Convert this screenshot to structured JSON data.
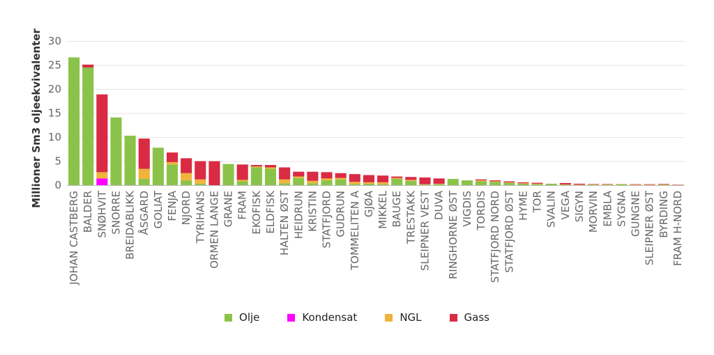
{
  "chart_data": {
    "type": "bar",
    "stacked": true,
    "ylabel": "Millioner Sm3 oljeekvivalenter",
    "ylim": [
      0,
      30
    ],
    "yticks": [
      0,
      5,
      10,
      15,
      20,
      25,
      30
    ],
    "grid": true,
    "legend_position": "bottom",
    "categories": [
      "JOHAN CASTBERG",
      "BALDER",
      "SNØHVIT",
      "SNORRE",
      "BREIDABLIKK",
      "ÅSGARD",
      "GOLIAT",
      "FENJA",
      "NJORD",
      "TYRIHANS",
      "ORMEN LANGE",
      "GRANE",
      "FRAM",
      "EKOFISK",
      "ELDFISK",
      "HALTEN ØST",
      "HEIDRUN",
      "KRISTIN",
      "STATFJORD",
      "GUDRUN",
      "TOMMELITEN A",
      "GJØA",
      "MIKKEL",
      "BAUGE",
      "TRESTAKK",
      "SLEIPNER VEST",
      "DUVA",
      "RINGHORNE ØST",
      "VIGDIS",
      "TORDIS",
      "STATFJORD NORD",
      "STATFJORD ØST",
      "HYME",
      "TOR",
      "SVALIN",
      "VEGA",
      "SIGYN",
      "MORVIN",
      "EMBLA",
      "SYGNA",
      "GUNGNE",
      "SLEIPNER ØST",
      "BYRDING",
      "FRAM H-NORD"
    ],
    "series": [
      {
        "name": "Olje",
        "color": "#8bc34a",
        "values": [
          26.6,
          24.5,
          0,
          14.1,
          10.3,
          1.3,
          7.8,
          4.3,
          1.0,
          0.3,
          0,
          4.4,
          0.8,
          3.7,
          3.4,
          0.4,
          1.5,
          0.4,
          1.0,
          1.2,
          0.2,
          0.3,
          0.2,
          1.3,
          0.9,
          0.1,
          0.2,
          1.3,
          1.0,
          0.8,
          0.7,
          0.5,
          0.3,
          0.2,
          0.3,
          0.1,
          0.05,
          0.1,
          0.1,
          0.2,
          0.05,
          0.05,
          0.1,
          0.05
        ]
      },
      {
        "name": "Kondensat",
        "color": "#ff00ff",
        "values": [
          0,
          0,
          1.4,
          0,
          0,
          0,
          0,
          0,
          0,
          0,
          0,
          0,
          0,
          0,
          0,
          0,
          0,
          0,
          0,
          0,
          0,
          0,
          0,
          0,
          0,
          0,
          0,
          0,
          0,
          0,
          0,
          0,
          0,
          0,
          0,
          0,
          0,
          0,
          0,
          0,
          0,
          0,
          0,
          0
        ]
      },
      {
        "name": "NGL",
        "color": "#f0b43c",
        "values": [
          0,
          0,
          1.3,
          0,
          0,
          2.1,
          0,
          0.5,
          1.5,
          0.9,
          0,
          0,
          0.3,
          0.2,
          0.3,
          0.8,
          0.3,
          0.5,
          0.4,
          0.3,
          0.5,
          0.3,
          0.4,
          0.2,
          0.2,
          0.1,
          0.1,
          0,
          0,
          0.2,
          0.1,
          0.1,
          0.1,
          0.1,
          0,
          0.05,
          0.05,
          0.1,
          0.1,
          0.05,
          0.05,
          0.05,
          0.05,
          0
        ]
      },
      {
        "name": "Gass",
        "color": "#d92b43",
        "values": [
          0,
          0.6,
          16.2,
          0,
          0,
          6.3,
          0,
          2.0,
          3.1,
          3.8,
          5.0,
          0,
          3.2,
          0.3,
          0.5,
          2.5,
          1.0,
          1.9,
          1.3,
          1.0,
          1.6,
          1.5,
          1.4,
          0.3,
          0.6,
          1.4,
          1.1,
          0,
          0,
          0.2,
          0.2,
          0.2,
          0.2,
          0.2,
          0,
          0.3,
          0.2,
          0.05,
          0.05,
          0,
          0.1,
          0.1,
          0.1,
          0.05
        ]
      }
    ]
  }
}
